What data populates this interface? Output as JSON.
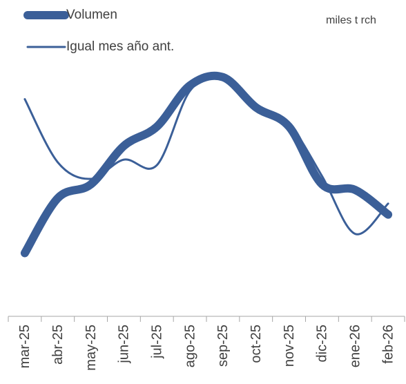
{
  "chart_data": {
    "type": "line",
    "unit_label": "miles t rch",
    "categories": [
      "mar-25",
      "abr-25",
      "may-25",
      "jun-25",
      "jul-25",
      "ago-25",
      "sep-25",
      "oct-25",
      "nov-25",
      "dic-25",
      "ene-26",
      "feb-26"
    ],
    "series": [
      {
        "name": "Volumen",
        "color": "#3b5f98",
        "line_width": 12,
        "values": [
          23,
          43,
          48,
          62,
          69,
          84,
          87,
          76,
          69,
          48,
          46,
          37
        ]
      },
      {
        "name": "Igual mes año ant.",
        "color": "#3b5f98",
        "line_width": 3,
        "values": [
          79,
          56,
          50,
          57,
          55,
          82,
          87,
          77,
          70,
          51,
          30,
          41
        ]
      }
    ],
    "ylim": [
      0,
      100
    ],
    "legend": "top-left"
  }
}
